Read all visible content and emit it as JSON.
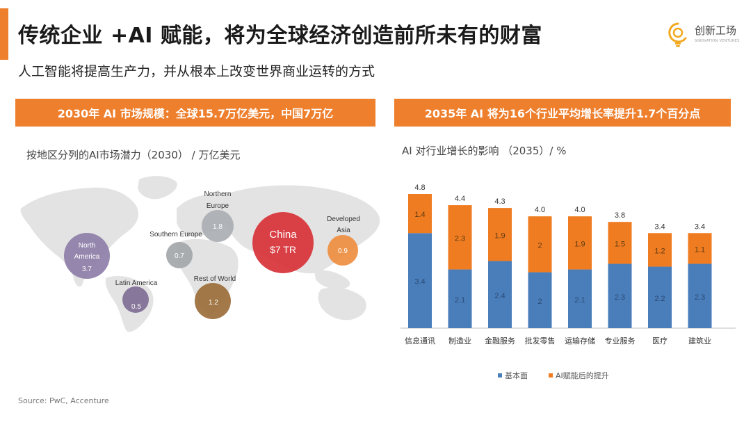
{
  "header": {
    "title": "传统企业 +AI 赋能，将为全球经济创造前所未有的财富",
    "subtitle": "人工智能将提高生产力，并从根本上改变世界商业运转的方式"
  },
  "logo": {
    "name": "创新工场",
    "sub": "SINOVATION VENTURES"
  },
  "colors": {
    "accent": "#EE7F2D",
    "base": "#4A7EBB",
    "uplift": "#F07C22"
  },
  "banners": {
    "left": "2030年 AI 市场规模：全球15.7万亿美元，中国7万亿",
    "right": "2035年 AI 将为16个行业平均增长率提升1.7个百分点"
  },
  "map": {
    "label": "按地区分列的AI市场潜力（2030）  / 万亿美元",
    "regions": [
      {
        "name": "North America",
        "value": "3.7",
        "color": "#8C7BA6"
      },
      {
        "name": "Latin America",
        "value": "0.5",
        "color": "#7C6A92"
      },
      {
        "name": "Southern Europe",
        "value": "0.7",
        "color": "#A2A5A9"
      },
      {
        "name": "Northern Europe",
        "value": "1.8",
        "color": "#A9ACB0"
      },
      {
        "name": "Rest of World",
        "value": "1.2",
        "color": "#9A6A35"
      },
      {
        "name": "China",
        "value": "$7 TR",
        "color": "#D72E34"
      },
      {
        "name": "Developed Asia",
        "value": "0.9",
        "color": "#EE8C3C"
      }
    ]
  },
  "chart_data": {
    "type": "bar",
    "stacked": true,
    "title": "AI 对行业增长的影响 （2035）/ %",
    "categories": [
      "信息通讯",
      "制造业",
      "金融服务",
      "批发零售",
      "运输存储",
      "专业服务",
      "医疗",
      "建筑业"
    ],
    "series": [
      {
        "name": "基本面",
        "values": [
          3.4,
          2.1,
          2.4,
          2,
          2.1,
          2.3,
          2.2,
          2.3
        ]
      },
      {
        "name": "AI赋能后的提升",
        "values": [
          1.4,
          2.3,
          1.9,
          2,
          1.9,
          1.5,
          1.2,
          1.1
        ]
      }
    ],
    "totals": [
      "4.8",
      "4.4",
      "4.3",
      "4.0",
      "4.0",
      "3.8",
      "3.4",
      "3.4"
    ],
    "segment_labels": {
      "base": [
        "3.4",
        "2.1",
        "2.4",
        "2",
        "2.1",
        "2.3",
        "2.2",
        "2.3"
      ],
      "uplift": [
        "1.4",
        "2.3",
        "1.9",
        "2",
        "1.9",
        "1.5",
        "1.2",
        "1.1"
      ]
    },
    "ylim": [
      0,
      5
    ],
    "grid": false,
    "legend": "bottom"
  },
  "source": "Source: PwC, Accenture"
}
